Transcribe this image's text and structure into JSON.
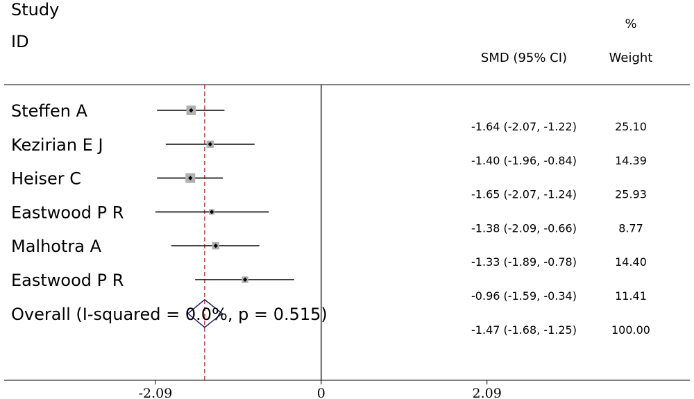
{
  "header": {
    "study_label": "Study",
    "id_label": "ID",
    "smd_label": "SMD (95% CI)",
    "pct_label": "%",
    "weight_label": "Weight"
  },
  "chart_data": {
    "type": "forest",
    "title": "",
    "xlabel": "",
    "xlim": [
      -4.05,
      4.7
    ],
    "null_line": 0,
    "ticks": [
      {
        "value": -2.09,
        "label": "-2.09"
      },
      {
        "value": 0,
        "label": "0"
      },
      {
        "value": 2.09,
        "label": "2.09"
      }
    ],
    "studies": [
      {
        "id": "Steffen A",
        "smd": -1.64,
        "lower": -2.07,
        "upper": -1.22,
        "ci_text": "-1.64 (-2.07, -1.22)",
        "weight": 25.1,
        "weight_text": "25.10"
      },
      {
        "id": "Kezirian E J",
        "smd": -1.4,
        "lower": -1.96,
        "upper": -0.84,
        "ci_text": "-1.40 (-1.96, -0.84)",
        "weight": 14.39,
        "weight_text": "14.39"
      },
      {
        "id": "Heiser C",
        "smd": -1.65,
        "lower": -2.07,
        "upper": -1.24,
        "ci_text": "-1.65 (-2.07, -1.24)",
        "weight": 25.93,
        "weight_text": "25.93"
      },
      {
        "id": "Eastwood P R",
        "smd": -1.38,
        "lower": -2.09,
        "upper": -0.66,
        "ci_text": "-1.38 (-2.09, -0.66)",
        "weight": 8.77,
        "weight_text": "8.77"
      },
      {
        "id": "Malhotra A",
        "smd": -1.33,
        "lower": -1.89,
        "upper": -0.78,
        "ci_text": "-1.33 (-1.89, -0.78)",
        "weight": 14.4,
        "weight_text": "14.40"
      },
      {
        "id": "Eastwood P R",
        "smd": -0.96,
        "lower": -1.59,
        "upper": -0.34,
        "ci_text": "-0.96 (-1.59, -0.34)",
        "weight": 11.41,
        "weight_text": "11.41"
      }
    ],
    "overall": {
      "label": "Overall  (I-squared = 0.0%, p = 0.515)",
      "smd": -1.47,
      "lower": -1.68,
      "upper": -1.25,
      "ci_text": "-1.47 (-1.68, -1.25)",
      "weight": 100.0,
      "weight_text": "100.00"
    },
    "colors": {
      "ci_line": "#000000",
      "weight_box": "#b0b0b0",
      "point": "#000000",
      "overall_line": "#b22222",
      "diamond": "#1a1a6e",
      "axis": "#000000"
    }
  }
}
